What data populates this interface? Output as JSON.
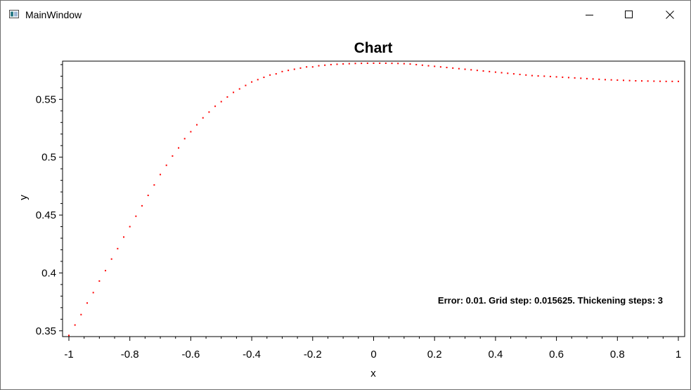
{
  "window": {
    "title": "MainWindow",
    "controls": {
      "minimize": "minimize-icon",
      "maximize": "maximize-icon",
      "close": "close-icon"
    }
  },
  "chart_data": {
    "type": "scatter",
    "title": "Chart",
    "xlabel": "x",
    "ylabel": "y",
    "xlim": [
      -1,
      1
    ],
    "ylim": [
      0.345,
      0.583
    ],
    "x_ticks": [
      "-1",
      "-0.8",
      "-0.6",
      "-0.4",
      "-0.2",
      "0",
      "0.2",
      "0.4",
      "0.6",
      "0.8",
      "1"
    ],
    "y_ticks": [
      "0.35",
      "0.4",
      "0.45",
      "0.5",
      "0.55"
    ],
    "annotation": "Error: 0.01. Grid step: 0.015625. Thickening steps: 3",
    "grid": false,
    "color": "#ff0000",
    "series": [
      {
        "x": [
          -1,
          -0.98,
          -0.96,
          -0.94,
          -0.92,
          -0.9,
          -0.88,
          -0.86,
          -0.84,
          -0.82,
          -0.8,
          -0.78,
          -0.76,
          -0.74,
          -0.72,
          -0.7,
          -0.68,
          -0.66,
          -0.64,
          -0.62,
          -0.6,
          -0.58,
          -0.56,
          -0.54,
          -0.52,
          -0.5,
          -0.48,
          -0.46,
          -0.44,
          -0.42,
          -0.4,
          -0.38,
          -0.36,
          -0.34,
          -0.32,
          -0.3,
          -0.28,
          -0.26,
          -0.24,
          -0.22,
          -0.2,
          -0.18,
          -0.16,
          -0.14,
          -0.12,
          -0.1,
          -0.08,
          -0.06,
          -0.04,
          -0.02,
          0,
          0.02,
          0.04,
          0.06,
          0.08,
          0.1,
          0.12,
          0.14,
          0.16,
          0.18,
          0.2,
          0.22,
          0.24,
          0.26,
          0.28,
          0.3,
          0.32,
          0.34,
          0.36,
          0.38,
          0.4,
          0.42,
          0.44,
          0.46,
          0.48,
          0.5,
          0.52,
          0.54,
          0.56,
          0.58,
          0.6,
          0.62,
          0.64,
          0.66,
          0.68,
          0.7,
          0.72,
          0.74,
          0.76,
          0.78,
          0.8,
          0.82,
          0.84,
          0.86,
          0.88,
          0.9,
          0.92,
          0.94,
          0.96,
          0.98,
          1
        ],
        "y": [
          0.346,
          0.355,
          0.364,
          0.374,
          0.383,
          0.393,
          0.402,
          0.412,
          0.421,
          0.431,
          0.44,
          0.449,
          0.458,
          0.467,
          0.476,
          0.485,
          0.493,
          0.501,
          0.508,
          0.516,
          0.522,
          0.528,
          0.534,
          0.539,
          0.544,
          0.548,
          0.552,
          0.556,
          0.559,
          0.562,
          0.565,
          0.567,
          0.569,
          0.571,
          0.572,
          0.574,
          0.575,
          0.576,
          0.577,
          0.578,
          0.578,
          0.579,
          0.5795,
          0.58,
          0.5803,
          0.5806,
          0.5808,
          0.581,
          0.5811,
          0.5812,
          0.5812,
          0.5812,
          0.5812,
          0.5811,
          0.581,
          0.5808,
          0.5805,
          0.58,
          0.5795,
          0.579,
          0.5785,
          0.578,
          0.5775,
          0.577,
          0.5765,
          0.576,
          0.5755,
          0.575,
          0.5745,
          0.574,
          0.5735,
          0.573,
          0.5725,
          0.572,
          0.5715,
          0.571,
          0.5705,
          0.5702,
          0.57,
          0.5697,
          0.5694,
          0.5691,
          0.5688,
          0.5685,
          0.5682,
          0.5679,
          0.5676,
          0.5673,
          0.567,
          0.5668,
          0.5666,
          0.5664,
          0.5662,
          0.566,
          0.5659,
          0.5658,
          0.5657,
          0.5656,
          0.5655,
          0.5655,
          0.5655
        ]
      }
    ]
  }
}
